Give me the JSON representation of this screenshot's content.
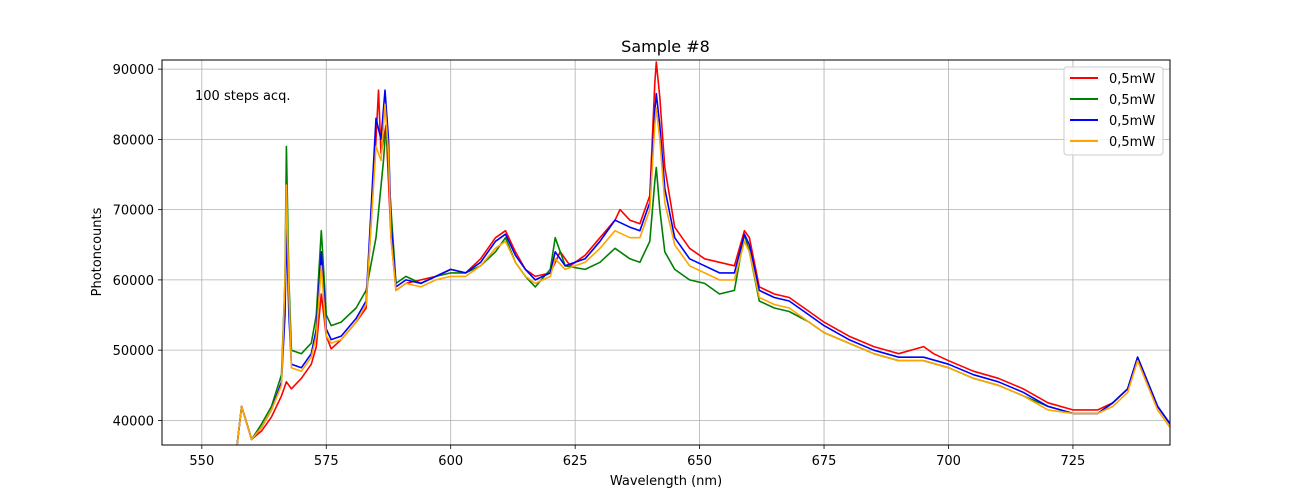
{
  "chart_data": {
    "type": "line",
    "title": "Sample #8",
    "xlabel": "Wavelength (nm)",
    "ylabel": "Photoncounts",
    "xlim": [
      542,
      744.5
    ],
    "ylim": [
      36500,
      91300
    ],
    "xticks": [
      550,
      575,
      600,
      625,
      650,
      675,
      700,
      725
    ],
    "yticks": [
      40000,
      50000,
      60000,
      70000,
      80000,
      90000
    ],
    "grid": true,
    "legend_position": "top-right",
    "annotation": "100 steps acq.",
    "series": [
      {
        "name": "0,5mW",
        "color": "#ff0000",
        "points": [
          [
            557,
            36000
          ],
          [
            558,
            42000
          ],
          [
            559.5,
            38500
          ],
          [
            560,
            37300
          ],
          [
            562,
            38500
          ],
          [
            564,
            40500
          ],
          [
            566,
            43500
          ],
          [
            567,
            45500
          ],
          [
            568,
            44500
          ],
          [
            570,
            46000
          ],
          [
            572,
            48000
          ],
          [
            573,
            50500
          ],
          [
            574,
            58000
          ],
          [
            575,
            52000
          ],
          [
            576,
            50200
          ],
          [
            578,
            51500
          ],
          [
            581,
            54000
          ],
          [
            583,
            56000
          ],
          [
            585,
            80000
          ],
          [
            585.5,
            87000
          ],
          [
            586,
            78000
          ],
          [
            587,
            82000
          ],
          [
            588,
            66000
          ],
          [
            589,
            58500
          ],
          [
            591,
            59500
          ],
          [
            594,
            60000
          ],
          [
            597,
            60500
          ],
          [
            600,
            61500
          ],
          [
            603,
            61000
          ],
          [
            606,
            63000
          ],
          [
            609,
            66000
          ],
          [
            611,
            67000
          ],
          [
            613,
            64000
          ],
          [
            615,
            61500
          ],
          [
            617,
            60500
          ],
          [
            620,
            61000
          ],
          [
            622,
            64000
          ],
          [
            624,
            62000
          ],
          [
            627,
            63500
          ],
          [
            630,
            66000
          ],
          [
            633,
            68500
          ],
          [
            634,
            70000
          ],
          [
            636,
            68500
          ],
          [
            638,
            68000
          ],
          [
            640,
            72000
          ],
          [
            641,
            88000
          ],
          [
            641.3,
            91000
          ],
          [
            642,
            86000
          ],
          [
            643,
            76000
          ],
          [
            645,
            67500
          ],
          [
            648,
            64500
          ],
          [
            651,
            63000
          ],
          [
            654,
            62500
          ],
          [
            657,
            62000
          ],
          [
            659,
            67000
          ],
          [
            660,
            66000
          ],
          [
            662,
            59000
          ],
          [
            665,
            58000
          ],
          [
            668,
            57500
          ],
          [
            672,
            55500
          ],
          [
            675,
            54000
          ],
          [
            680,
            52000
          ],
          [
            685,
            50500
          ],
          [
            690,
            49500
          ],
          [
            695,
            50500
          ],
          [
            697,
            49500
          ],
          [
            700,
            48500
          ],
          [
            705,
            47000
          ],
          [
            710,
            46000
          ],
          [
            715,
            44500
          ],
          [
            720,
            42500
          ],
          [
            725,
            41500
          ],
          [
            730,
            41500
          ],
          [
            733,
            42500
          ],
          [
            736,
            44500
          ],
          [
            738,
            49000
          ],
          [
            740,
            45500
          ],
          [
            742,
            42000
          ],
          [
            744.5,
            39500
          ]
        ]
      },
      {
        "name": "0,5mW",
        "color": "#008000",
        "points": [
          [
            557,
            36000
          ],
          [
            558,
            42000
          ],
          [
            559.5,
            38500
          ],
          [
            560,
            37300
          ],
          [
            562,
            39500
          ],
          [
            564,
            42000
          ],
          [
            566,
            46500
          ],
          [
            566.7,
            60000
          ],
          [
            567,
            79000
          ],
          [
            567.5,
            60000
          ],
          [
            568,
            50000
          ],
          [
            570,
            49500
          ],
          [
            572,
            51000
          ],
          [
            573,
            55000
          ],
          [
            574,
            67000
          ],
          [
            575,
            55000
          ],
          [
            576,
            53500
          ],
          [
            578,
            54000
          ],
          [
            581,
            56000
          ],
          [
            583,
            58500
          ],
          [
            585,
            66000
          ],
          [
            586.5,
            77000
          ],
          [
            587,
            82000
          ],
          [
            588,
            70000
          ],
          [
            589,
            59500
          ],
          [
            591,
            60500
          ],
          [
            594,
            59500
          ],
          [
            597,
            60500
          ],
          [
            600,
            61000
          ],
          [
            603,
            61000
          ],
          [
            606,
            62000
          ],
          [
            609,
            64000
          ],
          [
            611,
            66000
          ],
          [
            613,
            62500
          ],
          [
            615,
            60500
          ],
          [
            617,
            59000
          ],
          [
            620,
            61500
          ],
          [
            621,
            66000
          ],
          [
            623,
            62000
          ],
          [
            627,
            61500
          ],
          [
            630,
            62500
          ],
          [
            633,
            64500
          ],
          [
            636,
            63000
          ],
          [
            638,
            62500
          ],
          [
            640,
            65500
          ],
          [
            641,
            74000
          ],
          [
            641.3,
            76000
          ],
          [
            642,
            70000
          ],
          [
            643,
            64000
          ],
          [
            645,
            61500
          ],
          [
            648,
            60000
          ],
          [
            651,
            59500
          ],
          [
            654,
            58000
          ],
          [
            657,
            58500
          ],
          [
            659,
            66500
          ],
          [
            660,
            64000
          ],
          [
            662,
            57000
          ],
          [
            665,
            56000
          ],
          [
            668,
            55500
          ],
          [
            672,
            54000
          ],
          [
            675,
            52500
          ],
          [
            680,
            51000
          ],
          [
            685,
            49500
          ],
          [
            690,
            48500
          ],
          [
            695,
            48500
          ],
          [
            700,
            47500
          ],
          [
            705,
            46000
          ],
          [
            710,
            45000
          ],
          [
            715,
            43500
          ],
          [
            720,
            42000
          ],
          [
            725,
            41000
          ],
          [
            730,
            41000
          ],
          [
            733,
            42500
          ],
          [
            736,
            44500
          ],
          [
            738,
            49000
          ],
          [
            740,
            45500
          ],
          [
            742,
            42000
          ],
          [
            744.5,
            39500
          ]
        ]
      },
      {
        "name": "0,5mW",
        "color": "#0000ff",
        "points": [
          [
            557,
            36000
          ],
          [
            558,
            42000
          ],
          [
            559.5,
            38500
          ],
          [
            560,
            37300
          ],
          [
            562,
            39000
          ],
          [
            564,
            41500
          ],
          [
            566,
            45500
          ],
          [
            566.7,
            55000
          ],
          [
            567,
            67500
          ],
          [
            567.5,
            55000
          ],
          [
            568,
            48000
          ],
          [
            570,
            47500
          ],
          [
            572,
            49500
          ],
          [
            573,
            53000
          ],
          [
            574,
            64000
          ],
          [
            575,
            53000
          ],
          [
            576,
            51500
          ],
          [
            578,
            52000
          ],
          [
            581,
            54500
          ],
          [
            583,
            57000
          ],
          [
            585,
            83000
          ],
          [
            586,
            80000
          ],
          [
            586.8,
            87000
          ],
          [
            587.5,
            80000
          ],
          [
            588,
            68000
          ],
          [
            589,
            59000
          ],
          [
            591,
            60000
          ],
          [
            594,
            59500
          ],
          [
            597,
            60500
          ],
          [
            600,
            61500
          ],
          [
            603,
            61000
          ],
          [
            606,
            62500
          ],
          [
            609,
            65500
          ],
          [
            611,
            66500
          ],
          [
            613,
            63500
          ],
          [
            615,
            61500
          ],
          [
            617,
            60000
          ],
          [
            620,
            61000
          ],
          [
            621,
            64000
          ],
          [
            623,
            62000
          ],
          [
            627,
            63000
          ],
          [
            630,
            65500
          ],
          [
            633,
            68500
          ],
          [
            636,
            67500
          ],
          [
            638,
            67000
          ],
          [
            640,
            71000
          ],
          [
            641,
            84000
          ],
          [
            641.3,
            86500
          ],
          [
            642,
            82000
          ],
          [
            643,
            73000
          ],
          [
            645,
            66000
          ],
          [
            648,
            63000
          ],
          [
            651,
            62000
          ],
          [
            654,
            61000
          ],
          [
            657,
            61000
          ],
          [
            659,
            66500
          ],
          [
            660,
            65000
          ],
          [
            662,
            58500
          ],
          [
            665,
            57500
          ],
          [
            668,
            57000
          ],
          [
            672,
            55000
          ],
          [
            675,
            53500
          ],
          [
            680,
            51500
          ],
          [
            685,
            50000
          ],
          [
            690,
            49000
          ],
          [
            695,
            49000
          ],
          [
            700,
            48000
          ],
          [
            705,
            46500
          ],
          [
            710,
            45500
          ],
          [
            715,
            44000
          ],
          [
            720,
            42000
          ],
          [
            725,
            41000
          ],
          [
            730,
            41000
          ],
          [
            733,
            42500
          ],
          [
            736,
            44500
          ],
          [
            738,
            49000
          ],
          [
            740,
            45500
          ],
          [
            742,
            42000
          ],
          [
            744.5,
            39500
          ]
        ]
      },
      {
        "name": "0,5mW",
        "color": "#ffa500",
        "points": [
          [
            557,
            36000
          ],
          [
            558,
            42000
          ],
          [
            559.5,
            38500
          ],
          [
            560,
            37300
          ],
          [
            562,
            39000
          ],
          [
            564,
            41500
          ],
          [
            566,
            45000
          ],
          [
            566.7,
            60000
          ],
          [
            567,
            73500
          ],
          [
            567.5,
            58000
          ],
          [
            568,
            47500
          ],
          [
            570,
            47000
          ],
          [
            572,
            49000
          ],
          [
            573,
            52000
          ],
          [
            574,
            62000
          ],
          [
            575,
            52000
          ],
          [
            576,
            51000
          ],
          [
            578,
            51500
          ],
          [
            581,
            54000
          ],
          [
            583,
            56500
          ],
          [
            585,
            79000
          ],
          [
            586,
            77000
          ],
          [
            586.8,
            85000
          ],
          [
            587.5,
            78000
          ],
          [
            588,
            66000
          ],
          [
            589,
            58500
          ],
          [
            591,
            59500
          ],
          [
            594,
            59000
          ],
          [
            597,
            60000
          ],
          [
            600,
            60500
          ],
          [
            603,
            60500
          ],
          [
            606,
            62000
          ],
          [
            609,
            64500
          ],
          [
            611,
            65500
          ],
          [
            613,
            62500
          ],
          [
            615,
            60500
          ],
          [
            617,
            59500
          ],
          [
            620,
            60500
          ],
          [
            621,
            63000
          ],
          [
            623,
            61500
          ],
          [
            627,
            62500
          ],
          [
            630,
            64500
          ],
          [
            633,
            67000
          ],
          [
            636,
            66000
          ],
          [
            638,
            66000
          ],
          [
            640,
            70000
          ],
          [
            641,
            82000
          ],
          [
            641.3,
            84500
          ],
          [
            642,
            80000
          ],
          [
            643,
            71000
          ],
          [
            645,
            65000
          ],
          [
            648,
            62000
          ],
          [
            651,
            61000
          ],
          [
            654,
            60000
          ],
          [
            657,
            60000
          ],
          [
            659,
            65500
          ],
          [
            660,
            64000
          ],
          [
            662,
            57500
          ],
          [
            665,
            56500
          ],
          [
            668,
            56000
          ],
          [
            672,
            54000
          ],
          [
            675,
            52500
          ],
          [
            680,
            51000
          ],
          [
            685,
            49500
          ],
          [
            690,
            48500
          ],
          [
            695,
            48500
          ],
          [
            700,
            47500
          ],
          [
            705,
            46000
          ],
          [
            710,
            45000
          ],
          [
            715,
            43500
          ],
          [
            720,
            41500
          ],
          [
            725,
            41000
          ],
          [
            730,
            41000
          ],
          [
            733,
            42000
          ],
          [
            736,
            44000
          ],
          [
            738,
            48500
          ],
          [
            740,
            45000
          ],
          [
            742,
            41500
          ],
          [
            744.5,
            39000
          ]
        ]
      }
    ]
  }
}
